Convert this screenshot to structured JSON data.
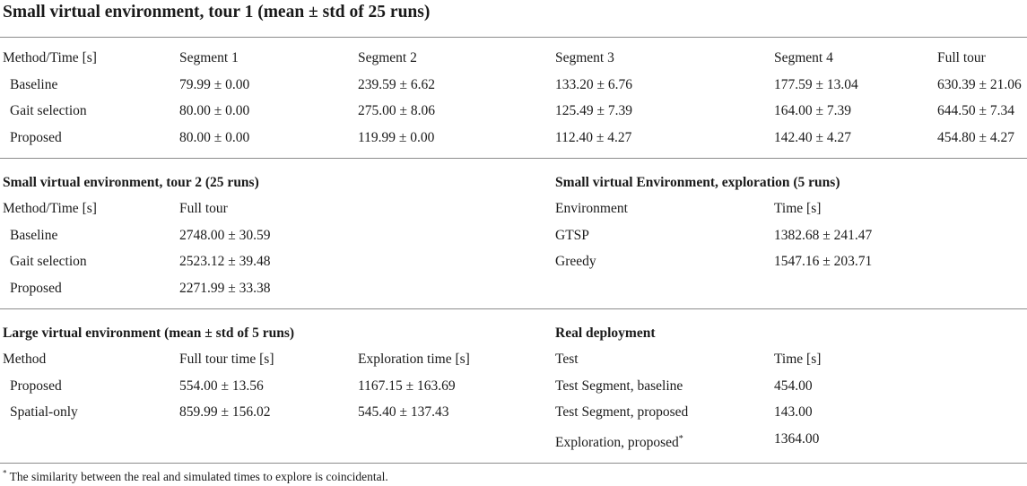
{
  "title": "Small virtual environment, tour 1 (mean ± std of 25 runs)",
  "tour1": {
    "headers": [
      "Method/Time [s]",
      "Segment 1",
      "Segment 2",
      "Segment 3",
      "Segment 4",
      "Full tour"
    ],
    "rows": [
      [
        "Baseline",
        "79.99 ± 0.00",
        "239.59 ± 6.62",
        "133.20 ± 6.76",
        "177.59 ± 13.04",
        "630.39 ± 21.06"
      ],
      [
        "Gait selection",
        "80.00 ± 0.00",
        "275.00 ± 8.06",
        "125.49 ± 7.39",
        "164.00 ± 7.39",
        "644.50 ± 7.34"
      ],
      [
        "Proposed",
        "80.00 ± 0.00",
        "119.99 ± 0.00",
        "112.40 ± 4.27",
        "142.40 ± 4.27",
        "454.80 ± 4.27"
      ]
    ]
  },
  "tour2": {
    "title": "Small virtual environment, tour 2 (25 runs)",
    "headers": [
      "Method/Time [s]",
      "Full tour"
    ],
    "rows": [
      [
        "Baseline",
        "2748.00 ± 30.59"
      ],
      [
        "Gait selection",
        "2523.12 ± 39.48"
      ],
      [
        "Proposed",
        "2271.99 ± 33.38"
      ]
    ]
  },
  "exploration": {
    "title": "Small virtual Environment, exploration (5 runs)",
    "headers": [
      "Environment",
      "Time [s]"
    ],
    "rows": [
      [
        "GTSP",
        "1382.68 ± 241.47"
      ],
      [
        "Greedy",
        "1547.16 ± 203.71"
      ]
    ]
  },
  "large": {
    "title": "Large virtual environment (mean ± std of 5 runs)",
    "headers": [
      "Method",
      "Full tour time [s]",
      "Exploration time [s]"
    ],
    "rows": [
      [
        "Proposed",
        "554.00 ± 13.56",
        "1167.15 ± 163.69"
      ],
      [
        "Spatial-only",
        "859.99 ± 156.02",
        "545.40 ± 137.43"
      ]
    ]
  },
  "real": {
    "title": "Real deployment",
    "headers": [
      "Test",
      "Time [s]"
    ],
    "rows": [
      [
        "Test Segment, baseline",
        "454.00"
      ],
      [
        "Test Segment, proposed",
        "143.00"
      ],
      [
        "Exploration, proposed",
        "1364.00"
      ]
    ],
    "footnote_marker": "*"
  },
  "footnote": {
    "marker": "*",
    "text": " The similarity between the real and simulated times to explore is coincidental."
  }
}
